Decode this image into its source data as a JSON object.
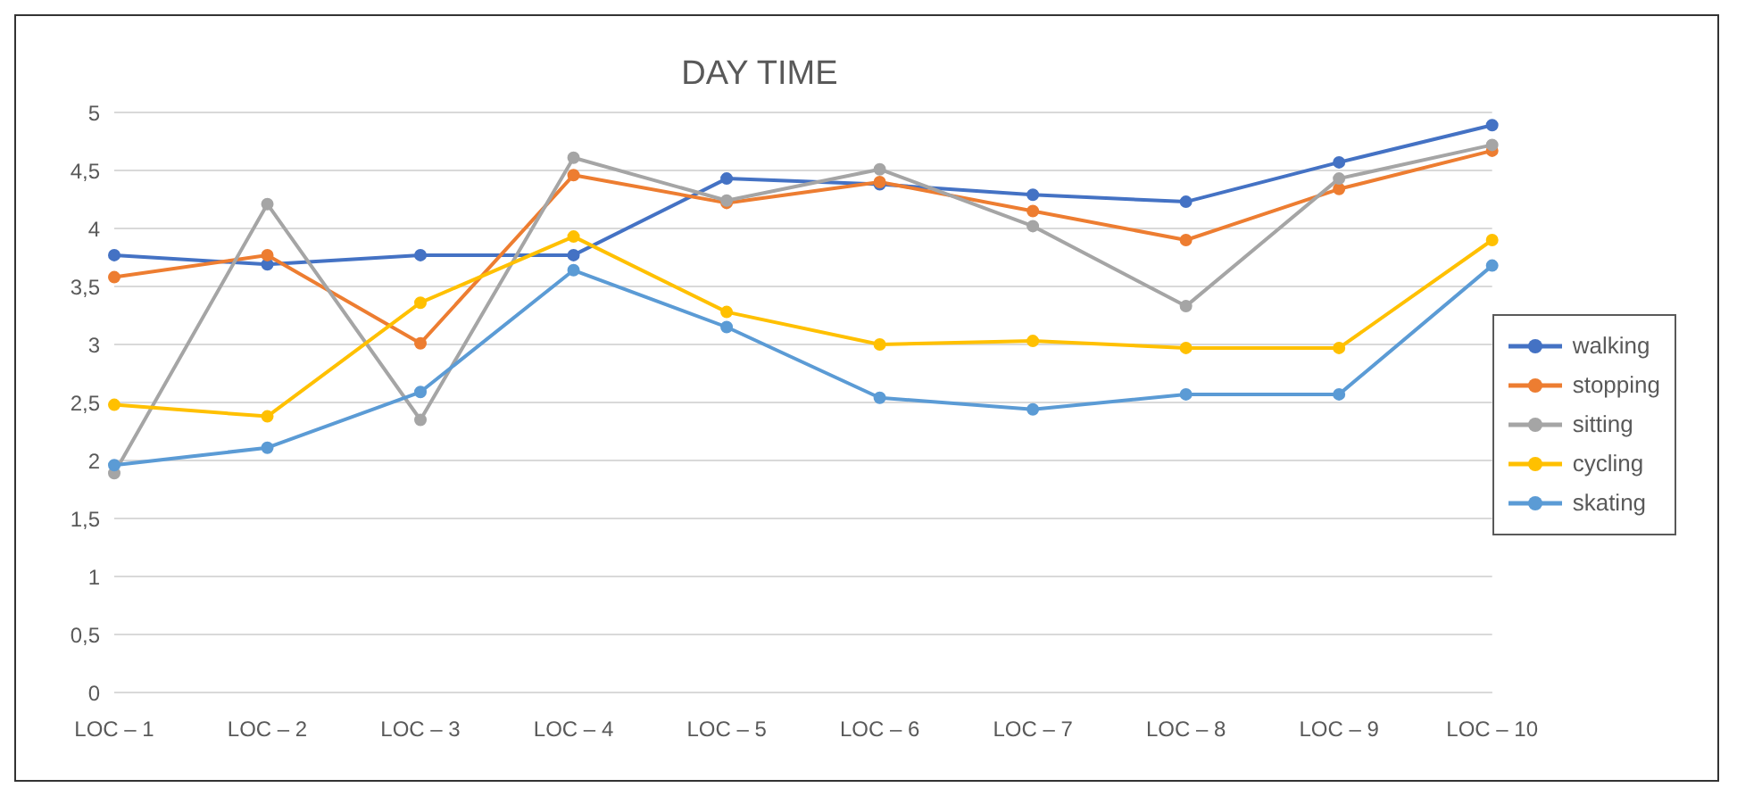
{
  "chart_data": {
    "type": "line",
    "title": "DAY TIME",
    "categories": [
      "LOC – 1",
      "LOC – 2",
      "LOC – 3",
      "LOC – 4",
      "LOC – 5",
      "LOC – 6",
      "LOC – 7",
      "LOC – 8",
      "LOC – 9",
      "LOC – 10"
    ],
    "series": [
      {
        "name": "walking",
        "color": "#4472c4",
        "values": [
          3.77,
          3.69,
          3.77,
          3.77,
          4.43,
          4.38,
          4.29,
          4.23,
          4.57,
          4.89
        ]
      },
      {
        "name": "stopping",
        "color": "#ed7d31",
        "values": [
          3.58,
          3.77,
          3.01,
          4.46,
          4.22,
          4.4,
          4.15,
          3.9,
          4.34,
          4.67
        ]
      },
      {
        "name": "sitting",
        "color": "#a5a5a5",
        "values": [
          1.89,
          4.21,
          2.35,
          4.61,
          4.24,
          4.51,
          4.02,
          3.33,
          4.43,
          4.72
        ]
      },
      {
        "name": "cycling",
        "color": "#ffc000",
        "values": [
          2.48,
          2.38,
          3.36,
          3.93,
          3.28,
          3.0,
          3.03,
          2.97,
          2.97,
          3.9
        ]
      },
      {
        "name": "skating",
        "color": "#5b9bd5",
        "values": [
          1.96,
          2.11,
          2.59,
          3.64,
          3.15,
          2.54,
          2.44,
          2.57,
          2.57,
          3.68
        ]
      }
    ],
    "ylim": [
      0,
      5
    ],
    "yticks": [
      0,
      {
        "value": 0.5,
        "label": "0,5"
      },
      1,
      {
        "value": 1.5,
        "label": "1,5"
      },
      2,
      {
        "value": 2.5,
        "label": "2,5"
      },
      3,
      {
        "value": 3.5,
        "label": "3,5"
      },
      4,
      {
        "value": 4.5,
        "label": "4,5"
      },
      5
    ],
    "grid": "y",
    "legend": "right",
    "marker": "circle",
    "line_style": "solid"
  }
}
